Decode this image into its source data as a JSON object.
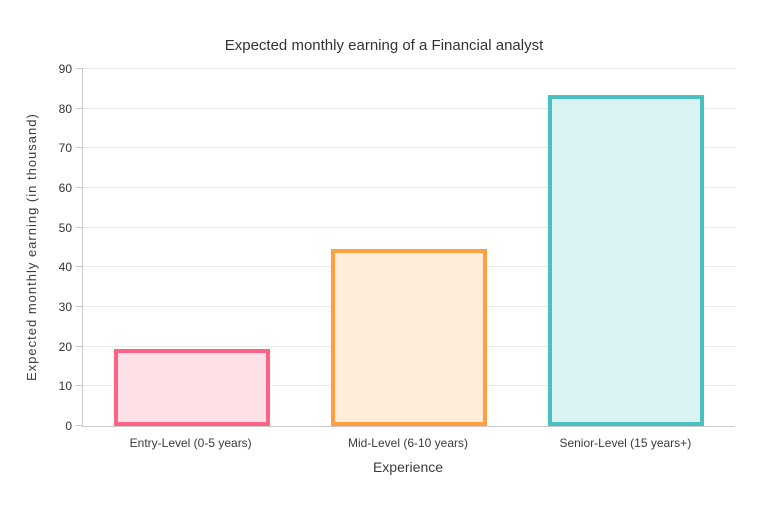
{
  "chart_data": {
    "type": "bar",
    "title": "Expected monthly earning of a Financial analyst",
    "xlabel": "Experience",
    "ylabel": "Expected monthly earning (in thousand)",
    "categories": [
      "Entry-Level (0-5 years)",
      "Mid-Level (6-10 years)",
      "Senior-Level (15 years+)"
    ],
    "values": [
      19.5,
      44.5,
      83.5
    ],
    "ylim": [
      0,
      90
    ],
    "ytick_step": 10,
    "grid": "horizontal-only",
    "legend": "none",
    "colors": {
      "gridline": "#e9e9e9",
      "axis_line": "#c9c9c9",
      "text": "#333333"
    },
    "bar_styles": [
      {
        "name": "entry-level",
        "border": "#ff6384",
        "fill": "#ffe0e6"
      },
      {
        "name": "mid-level",
        "border": "#ff9f40",
        "fill": "#ffecd9"
      },
      {
        "name": "senior-level",
        "border": "#4bc0c0",
        "fill": "#dbf2f2"
      }
    ]
  }
}
